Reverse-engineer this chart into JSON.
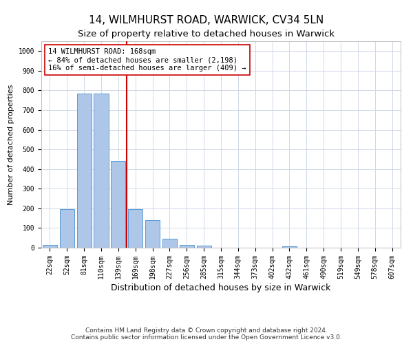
{
  "title1": "14, WILMHURST ROAD, WARWICK, CV34 5LN",
  "title2": "Size of property relative to detached houses in Warwick",
  "xlabel": "Distribution of detached houses by size in Warwick",
  "ylabel": "Number of detached properties",
  "bin_labels": [
    "22sqm",
    "52sqm",
    "81sqm",
    "110sqm",
    "139sqm",
    "169sqm",
    "198sqm",
    "227sqm",
    "256sqm",
    "285sqm",
    "315sqm",
    "344sqm",
    "373sqm",
    "402sqm",
    "432sqm",
    "461sqm",
    "490sqm",
    "519sqm",
    "549sqm",
    "578sqm",
    "607sqm"
  ],
  "bar_heights": [
    15,
    195,
    785,
    785,
    440,
    195,
    140,
    45,
    15,
    10,
    0,
    0,
    0,
    0,
    8,
    0,
    0,
    0,
    0,
    0,
    0
  ],
  "bar_color": "#aec6e8",
  "bar_edge_color": "#5b9bd5",
  "vline_color": "#cc0000",
  "annotation_line1": "14 WILMHURST ROAD: 168sqm",
  "annotation_line2": "← 84% of detached houses are smaller (2,198)",
  "annotation_line3": "16% of semi-detached houses are larger (409) →",
  "annotation_box_color": "#ffffff",
  "annotation_box_edge": "#cc0000",
  "footnote": "Contains HM Land Registry data © Crown copyright and database right 2024.\nContains public sector information licensed under the Open Government Licence v3.0.",
  "ylim": [
    0,
    1050
  ],
  "yticks": [
    0,
    100,
    200,
    300,
    400,
    500,
    600,
    700,
    800,
    900,
    1000
  ],
  "grid_color": "#d0d8e8",
  "title1_fontsize": 11,
  "title2_fontsize": 9.5,
  "xlabel_fontsize": 9,
  "ylabel_fontsize": 8,
  "tick_fontsize": 7,
  "annotation_fontsize": 7.5,
  "footnote_fontsize": 6.5
}
